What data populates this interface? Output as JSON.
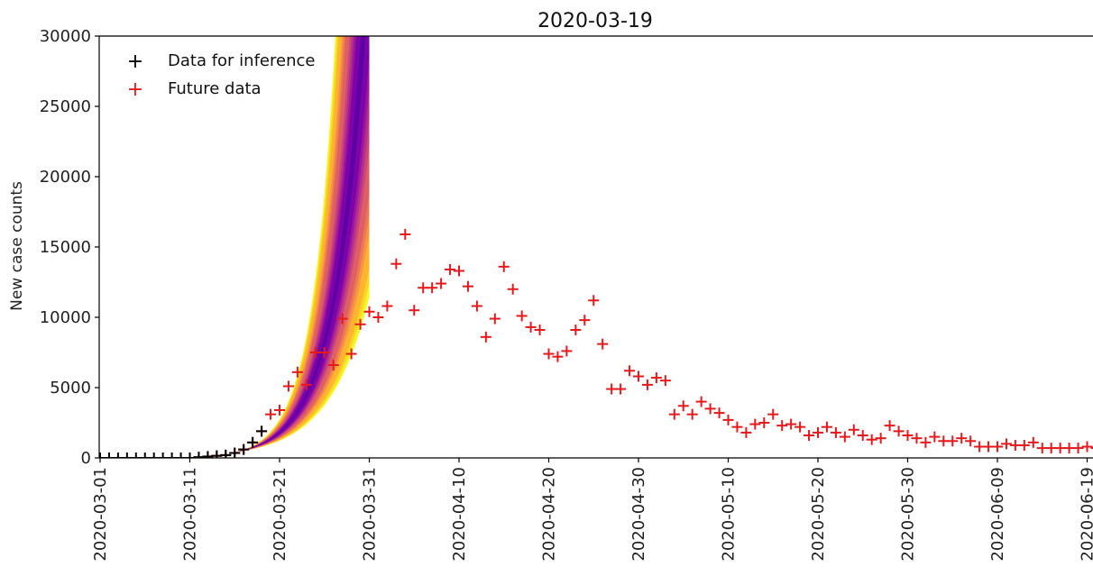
{
  "chart_data": {
    "type": "scatter",
    "title": "2020-03-19",
    "xlabel": "",
    "ylabel": "New case counts",
    "ylim": [
      0,
      30000
    ],
    "xlim": [
      "2020-03-01",
      "2020-06-22"
    ],
    "y_ticks": [
      "0",
      "5000",
      "10000",
      "15000",
      "20000",
      "25000",
      "30000"
    ],
    "x_ticks": [
      "2020-03-01",
      "2020-03-11",
      "2020-03-21",
      "2020-03-31",
      "2020-04-10",
      "2020-04-20",
      "2020-04-30",
      "2020-05-10",
      "2020-05-20",
      "2020-05-30",
      "2020-06-09",
      "2020-06-19"
    ],
    "grid": false,
    "legend": {
      "placement": "top-left",
      "entries": [
        {
          "label": "Data for inference",
          "color": "#000000",
          "marker": "+"
        },
        {
          "label": "Future data",
          "color": "#e41a1c",
          "marker": "+"
        }
      ]
    },
    "series": [
      {
        "name": "Data for inference",
        "color": "#000000",
        "marker": "+",
        "x": [
          "2020-03-01",
          "2020-03-02",
          "2020-03-03",
          "2020-03-04",
          "2020-03-05",
          "2020-03-06",
          "2020-03-07",
          "2020-03-08",
          "2020-03-09",
          "2020-03-10",
          "2020-03-11",
          "2020-03-12",
          "2020-03-13",
          "2020-03-14",
          "2020-03-15",
          "2020-03-16",
          "2020-03-17",
          "2020-03-18",
          "2020-03-19"
        ],
        "y": [
          0,
          0,
          0,
          0,
          0,
          0,
          0,
          0,
          0,
          0,
          0,
          50,
          100,
          150,
          200,
          350,
          600,
          1100,
          1900
        ]
      },
      {
        "name": "Future data",
        "color": "#e41a1c",
        "marker": "+",
        "x": [
          "2020-03-11",
          "2020-03-12",
          "2020-03-13",
          "2020-03-14",
          "2020-03-15",
          "2020-03-16",
          "2020-03-17",
          "2020-03-18",
          "2020-03-19",
          "2020-03-20",
          "2020-03-21",
          "2020-03-22",
          "2020-03-23",
          "2020-03-24",
          "2020-03-25",
          "2020-03-26",
          "2020-03-27",
          "2020-03-28",
          "2020-03-29",
          "2020-03-30",
          "2020-03-31",
          "2020-04-01",
          "2020-04-02",
          "2020-04-03",
          "2020-04-04",
          "2020-04-05",
          "2020-04-06",
          "2020-04-07",
          "2020-04-08",
          "2020-04-09",
          "2020-04-10",
          "2020-04-11",
          "2020-04-12",
          "2020-04-13",
          "2020-04-14",
          "2020-04-15",
          "2020-04-16",
          "2020-04-17",
          "2020-04-18",
          "2020-04-19",
          "2020-04-20",
          "2020-04-21",
          "2020-04-22",
          "2020-04-23",
          "2020-04-24",
          "2020-04-25",
          "2020-04-26",
          "2020-04-27",
          "2020-04-28",
          "2020-04-29",
          "2020-04-30",
          "2020-05-01",
          "2020-05-02",
          "2020-05-03",
          "2020-05-04",
          "2020-05-05",
          "2020-05-06",
          "2020-05-07",
          "2020-05-08",
          "2020-05-09",
          "2020-05-10",
          "2020-05-11",
          "2020-05-12",
          "2020-05-13",
          "2020-05-14",
          "2020-05-15",
          "2020-05-16",
          "2020-05-17",
          "2020-05-18",
          "2020-05-19",
          "2020-05-20",
          "2020-05-21",
          "2020-05-22",
          "2020-05-23",
          "2020-05-24",
          "2020-05-25",
          "2020-05-26",
          "2020-05-27",
          "2020-05-28",
          "2020-05-29",
          "2020-05-30",
          "2020-05-31",
          "2020-06-01",
          "2020-06-02",
          "2020-06-03",
          "2020-06-04",
          "2020-06-05",
          "2020-06-06",
          "2020-06-07",
          "2020-06-08",
          "2020-06-09",
          "2020-06-10",
          "2020-06-11",
          "2020-06-12",
          "2020-06-13",
          "2020-06-14",
          "2020-06-15",
          "2020-06-16",
          "2020-06-17",
          "2020-06-18",
          "2020-06-19",
          "2020-06-20",
          "2020-06-21"
        ],
        "y": [
          0,
          50,
          100,
          150,
          200,
          350,
          600,
          1100,
          1900,
          3100,
          3400,
          5100,
          6100,
          5200,
          7500,
          7500,
          6600,
          9900,
          7400,
          9500,
          10400,
          10000,
          10800,
          13800,
          15900,
          10500,
          12100,
          12100,
          12400,
          13400,
          13300,
          12200,
          10800,
          8600,
          9900,
          13600,
          12000,
          10100,
          9300,
          9100,
          7400,
          7200,
          7600,
          9100,
          9800,
          11200,
          8100,
          4900,
          4900,
          6200,
          5800,
          5200,
          5700,
          5500,
          3100,
          3700,
          3100,
          4000,
          3500,
          3200,
          2700,
          2200,
          1800,
          2400,
          2500,
          3100,
          2300,
          2400,
          2200,
          1600,
          1800,
          2200,
          1800,
          1500,
          2000,
          1600,
          1300,
          1400,
          2300,
          1900,
          1600,
          1400,
          1100,
          1500,
          1200,
          1200,
          1400,
          1200,
          800,
          800,
          800,
          1000,
          900,
          900,
          1100,
          700,
          700,
          700,
          700,
          700,
          800,
          700,
          700
        ]
      }
    ],
    "forecast_band": {
      "start": "2020-03-16",
      "end": "2020-03-31",
      "colormap": "plasma",
      "median_at_start": 400,
      "median_doubling_days": 2.3,
      "inner_doubling_days": [
        2.1,
        2.55
      ],
      "outer_doubling_days": [
        1.8,
        3.1
      ]
    },
    "colors": {
      "band_outer": "#f0f921",
      "band_mid": "#f89540",
      "band_inner": "#cc4778",
      "band_core": "#5c01a6"
    }
  }
}
